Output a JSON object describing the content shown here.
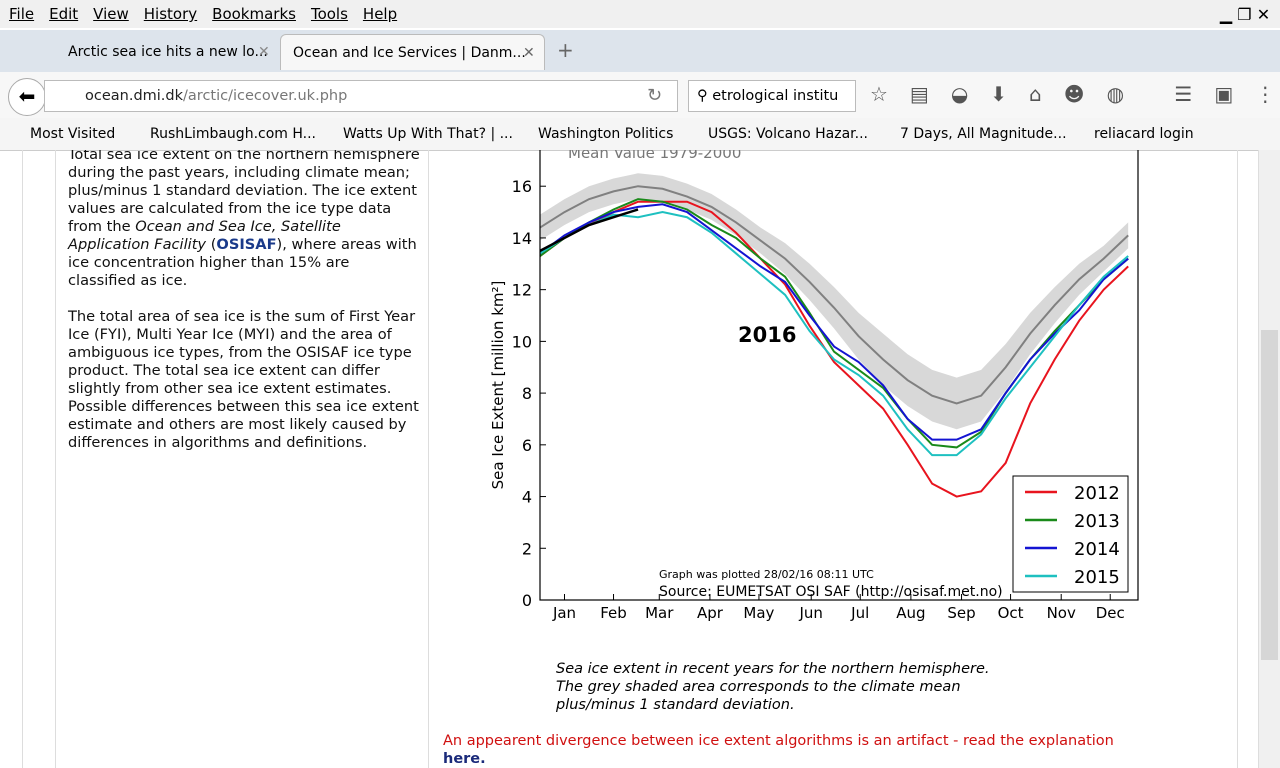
{
  "menu": [
    "File",
    "Edit",
    "View",
    "History",
    "Bookmarks",
    "Tools",
    "Help"
  ],
  "tabs": [
    "Arctic sea ice hits a new lo...",
    "Ocean and Ice Services | Danm..."
  ],
  "url": {
    "host": "ocean.dmi.dk",
    "path": "/arctic/icecover.uk.php"
  },
  "search": "etrological institu",
  "bookmarks": [
    "Most Visited",
    "RushLimbaugh.com H...",
    "Watts Up With That? | ...",
    "Washington Politics",
    "USGS: Volcano Hazar...",
    "7 Days, All Magnitude...",
    "reliacard login"
  ],
  "left_text": {
    "p1": [
      "Total sea ice extent on the northern hemisphere during the past years, including climate mean; plus/minus 1 standard deviation. The ice extent values are calculated from the ice type data from the ",
      "Ocean and Sea Ice, Satellite Application Facility",
      " (",
      "OSISAF",
      "), where areas with ice concentration higher than 15% are classified as ice."
    ],
    "p2": "The total area of sea ice is the sum of First Year Ice (FYI), Multi Year Ice (MYI) and the area of ambiguous ice types, from the OSISAF ice type product. The total sea ice extent can differ slightly from other sea ice extent estimates. Possible differences between this sea ice extent estimate and others are most likely caused by differences in algorithms and definitions."
  },
  "chart_data": {
    "type": "line",
    "y_label": "Sea Ice Extent [million km²]",
    "annotations": {
      "year": "2016",
      "mean": "Mean Value 1979-2000",
      "plotted": "Graph was plotted 28/02/16 08:11 UTC",
      "source": "Source: EUMETSAT OSI SAF (http://osisaf.met.no)"
    },
    "xlim": [
      0,
      366
    ],
    "ylim": [
      0,
      17.4
    ],
    "yticks": [
      0,
      2,
      4,
      6,
      8,
      10,
      12,
      14,
      16
    ],
    "xticks": [
      {
        "value": 15,
        "label": "Jan"
      },
      {
        "value": 45,
        "label": "Feb"
      },
      {
        "value": 73,
        "label": "Mar"
      },
      {
        "value": 104,
        "label": "Apr"
      },
      {
        "value": 134,
        "label": "May"
      },
      {
        "value": 166,
        "label": "Jun"
      },
      {
        "value": 196,
        "label": "Jul"
      },
      {
        "value": 227,
        "label": "Aug"
      },
      {
        "value": 258,
        "label": "Sep"
      },
      {
        "value": 288,
        "label": "Oct"
      },
      {
        "value": 319,
        "label": "Nov"
      },
      {
        "value": 349,
        "label": "Dec"
      }
    ],
    "x": [
      0,
      15,
      30,
      45,
      60,
      75,
      90,
      105,
      120,
      135,
      150,
      165,
      180,
      195,
      210,
      225,
      240,
      255,
      270,
      285,
      300,
      315,
      330,
      345,
      360
    ],
    "band": {
      "color": "#d8d8d8",
      "low": [
        13.9,
        14.5,
        15.0,
        15.3,
        15.5,
        15.4,
        15.1,
        14.7,
        14.1,
        13.4,
        12.6,
        11.6,
        10.5,
        9.3,
        8.3,
        7.5,
        6.9,
        6.6,
        6.9,
        8.1,
        9.5,
        10.7,
        11.8,
        12.7,
        13.6
      ],
      "high": [
        14.9,
        15.5,
        16.0,
        16.3,
        16.5,
        16.4,
        16.1,
        15.7,
        15.1,
        14.4,
        13.8,
        13.0,
        12.1,
        11.1,
        10.3,
        9.5,
        8.9,
        8.6,
        8.9,
        9.9,
        11.1,
        12.1,
        13.0,
        13.7,
        14.6
      ]
    },
    "mean": {
      "color": "#808080",
      "values": [
        14.4,
        15.0,
        15.5,
        15.8,
        16.0,
        15.9,
        15.6,
        15.2,
        14.6,
        13.9,
        13.2,
        12.3,
        11.3,
        10.2,
        9.3,
        8.5,
        7.9,
        7.6,
        7.9,
        9.0,
        10.3,
        11.4,
        12.4,
        13.2,
        14.1
      ]
    },
    "series": [
      {
        "name": "2012",
        "color": "#e8141e",
        "values": [
          13.3,
          14.0,
          14.5,
          15.0,
          15.4,
          15.4,
          15.4,
          15.0,
          14.2,
          13.2,
          12.2,
          10.6,
          9.2,
          8.3,
          7.4,
          6.0,
          4.5,
          4.0,
          4.2,
          5.3,
          7.6,
          9.3,
          10.8,
          12.0,
          12.9
        ]
      },
      {
        "name": "2013",
        "color": "#1a8a1a",
        "values": [
          13.3,
          14.0,
          14.6,
          15.1,
          15.5,
          15.4,
          15.1,
          14.5,
          14.0,
          13.2,
          12.5,
          11.1,
          9.6,
          8.9,
          8.2,
          7.0,
          6.0,
          5.9,
          6.5,
          8.0,
          9.3,
          10.4,
          11.4,
          12.4,
          13.2
        ]
      },
      {
        "name": "2014",
        "color": "#1414d2",
        "values": [
          13.4,
          14.1,
          14.6,
          15.0,
          15.2,
          15.3,
          15.0,
          14.3,
          13.6,
          12.9,
          12.3,
          11.0,
          9.8,
          9.2,
          8.3,
          7.0,
          6.2,
          6.2,
          6.6,
          8.0,
          9.3,
          10.3,
          11.2,
          12.4,
          13.2
        ]
      },
      {
        "name": "2015",
        "color": "#1ec0c0",
        "values": [
          13.4,
          14.0,
          14.5,
          14.9,
          14.8,
          15.0,
          14.8,
          14.2,
          13.4,
          12.6,
          11.8,
          10.4,
          9.3,
          8.7,
          7.9,
          6.6,
          5.6,
          5.6,
          6.4,
          7.8,
          9.0,
          10.2,
          11.4,
          12.5,
          13.3
        ]
      }
    ],
    "current": {
      "color": "#000000",
      "values": [
        13.5,
        14.0,
        14.5,
        14.8,
        15.1,
        null,
        null,
        null,
        null,
        null,
        null,
        null,
        null,
        null,
        null,
        null,
        null,
        null,
        null,
        null,
        null,
        null,
        null,
        null,
        null
      ]
    }
  },
  "caption": [
    "Sea ice extent in recent years for the northern hemisphere.",
    "The grey shaded area corresponds to the climate mean",
    "plus/minus 1 standard deviation."
  ],
  "notice": "An appearent divergence between ice extent algorithms is an artifact - read the explanation",
  "notice_link": "here."
}
